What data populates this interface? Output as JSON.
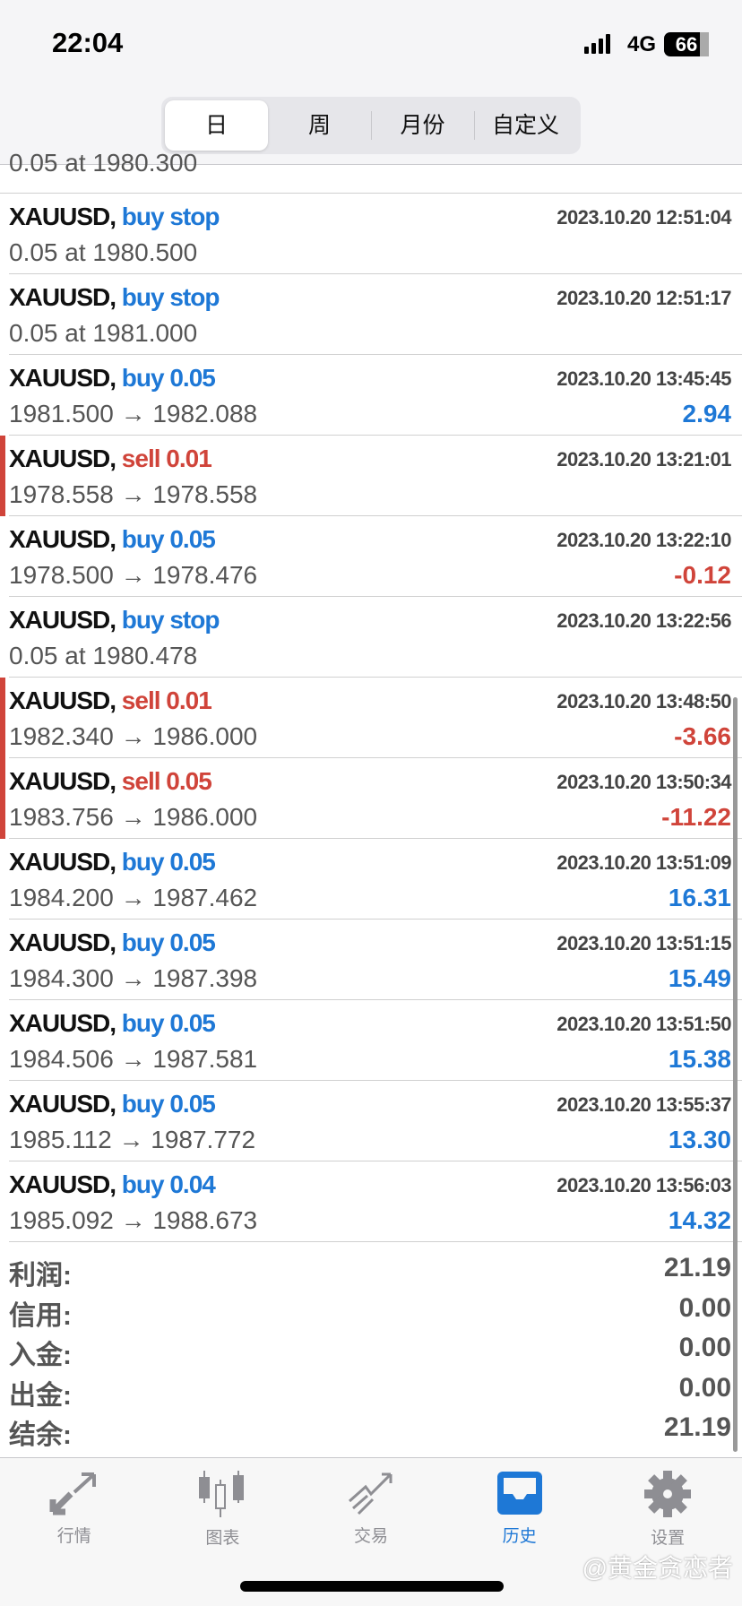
{
  "status": {
    "time": "22:04",
    "network": "4G",
    "battery": "66"
  },
  "segments": [
    "日",
    "周",
    "月份",
    "自定义"
  ],
  "partial_row": "0.05 at 1980.300",
  "rows": [
    {
      "symbol": "XAUUSD,",
      "action": "buy stop",
      "side": "buy",
      "time": "2023.10.20 12:51:04",
      "price": "0.05 at 1980.500",
      "profit": ""
    },
    {
      "symbol": "XAUUSD,",
      "action": "buy stop",
      "side": "buy",
      "time": "2023.10.20 12:51:17",
      "price": "0.05 at 1981.000",
      "profit": ""
    },
    {
      "symbol": "XAUUSD,",
      "action": "buy 0.05",
      "side": "buy",
      "time": "2023.10.20 13:45:45",
      "price": "1981.500 → 1982.088",
      "profit": "2.94"
    },
    {
      "symbol": "XAUUSD,",
      "action": "sell 0.01",
      "side": "sell",
      "time": "2023.10.20 13:21:01",
      "price": "1978.558 → 1978.558",
      "profit": ""
    },
    {
      "symbol": "XAUUSD,",
      "action": "buy 0.05",
      "side": "buy",
      "time": "2023.10.20 13:22:10",
      "price": "1978.500 → 1978.476",
      "profit": "-0.12"
    },
    {
      "symbol": "XAUUSD,",
      "action": "buy stop",
      "side": "buy",
      "time": "2023.10.20 13:22:56",
      "price": "0.05 at 1980.478",
      "profit": ""
    },
    {
      "symbol": "XAUUSD,",
      "action": "sell 0.01",
      "side": "sell",
      "time": "2023.10.20 13:48:50",
      "price": "1982.340 → 1986.000",
      "profit": "-3.66"
    },
    {
      "symbol": "XAUUSD,",
      "action": "sell 0.05",
      "side": "sell",
      "time": "2023.10.20 13:50:34",
      "price": "1983.756 → 1986.000",
      "profit": "-11.22"
    },
    {
      "symbol": "XAUUSD,",
      "action": "buy 0.05",
      "side": "buy",
      "time": "2023.10.20 13:51:09",
      "price": "1984.200 → 1987.462",
      "profit": "16.31"
    },
    {
      "symbol": "XAUUSD,",
      "action": "buy 0.05",
      "side": "buy",
      "time": "2023.10.20 13:51:15",
      "price": "1984.300 → 1987.398",
      "profit": "15.49"
    },
    {
      "symbol": "XAUUSD,",
      "action": "buy 0.05",
      "side": "buy",
      "time": "2023.10.20 13:51:50",
      "price": "1984.506 → 1987.581",
      "profit": "15.38"
    },
    {
      "symbol": "XAUUSD,",
      "action": "buy 0.05",
      "side": "buy",
      "time": "2023.10.20 13:55:37",
      "price": "1985.112 → 1987.772",
      "profit": "13.30"
    },
    {
      "symbol": "XAUUSD,",
      "action": "buy 0.04",
      "side": "buy",
      "time": "2023.10.20 13:56:03",
      "price": "1985.092 → 1988.673",
      "profit": "14.32"
    }
  ],
  "summary": [
    {
      "label": "利润:",
      "value": "21.19"
    },
    {
      "label": "信用:",
      "value": "0.00"
    },
    {
      "label": "入金:",
      "value": "0.00"
    },
    {
      "label": "出金:",
      "value": "0.00"
    },
    {
      "label": "结余:",
      "value": "21.19"
    }
  ],
  "tabs": [
    {
      "label": "行情",
      "icon": "quotes-arrows-icon"
    },
    {
      "label": "图表",
      "icon": "candlestick-icon"
    },
    {
      "label": "交易",
      "icon": "trade-trend-icon"
    },
    {
      "label": "历史",
      "icon": "history-inbox-icon",
      "active": true
    },
    {
      "label": "设置",
      "icon": "gear-icon"
    }
  ],
  "watermark": "@黄金贪恋者",
  "colors": {
    "buy": "#1e78d6",
    "sell": "#d0443a",
    "active_tab": "#1e78d6"
  }
}
